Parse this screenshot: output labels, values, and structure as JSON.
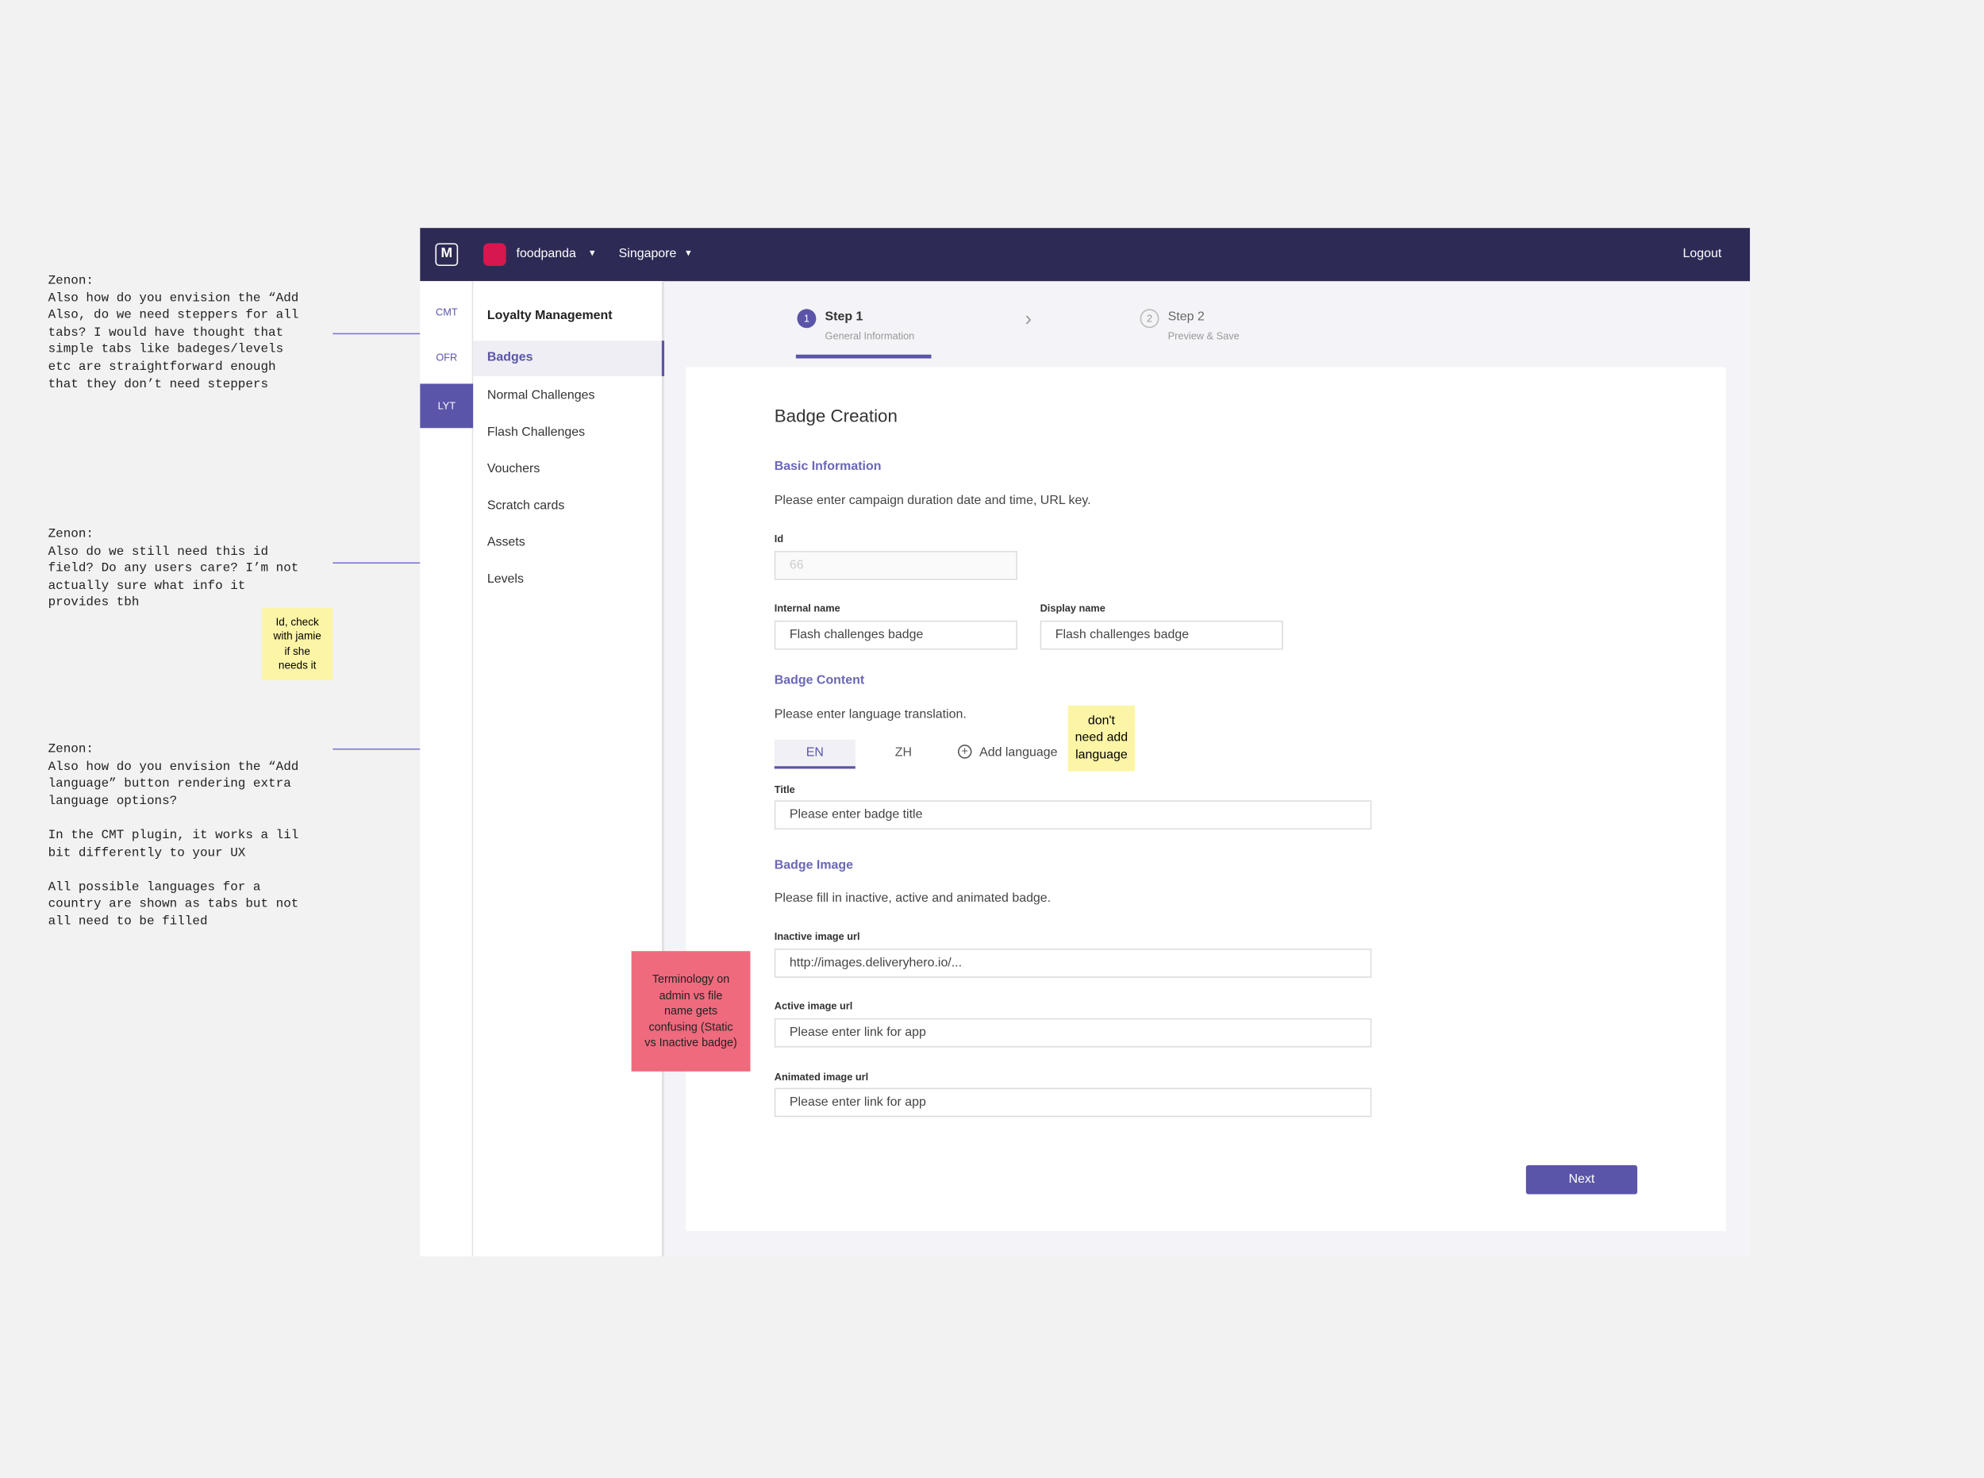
{
  "notes": [
    "Zenon:\nAlso how do you envision the “Add\nAlso, do we need steppers for all\ntabs? I would have thought that\nsimple tabs like badeges/levels\netc are straightforward enough\nthat they don’t need steppers",
    "Zenon:\nAlso do we still need this id\nfield? Do any users care? I’m not\nactually sure what info it\nprovides tbh",
    "Zenon:\nAlso how do you envision the “Add\nlanguage” button rendering extra\nlanguage options?\n\nIn the CMT plugin, it works a lil\nbit differently to your UX\n\nAll possible languages for a\ncountry are shown as tabs but not\nall need to be filled"
  ],
  "stickies": [
    "Id, check\nwith jamie\nif she\nneeds it",
    "don't\nneed add\nlanguage",
    "Terminology on\nadmin vs file\nname gets\nconfusing (Static\nvs Inactive badge)"
  ],
  "header": {
    "logo": "M",
    "brand": "foodpanda",
    "region": "Singapore",
    "logout": "Logout"
  },
  "rail": [
    "CMT",
    "OFR",
    "LYT"
  ],
  "sidebar": {
    "title": "Loyalty Management",
    "items": [
      "Badges",
      "Normal Challenges",
      "Flash Challenges",
      "Vouchers",
      "Scratch cards",
      "Assets",
      "Levels"
    ]
  },
  "stepper": [
    {
      "num": "1",
      "label": "Step 1",
      "sub": "General Information"
    },
    {
      "num": "2",
      "label": "Step 2",
      "sub": "Preview & Save"
    }
  ],
  "form": {
    "title": "Badge Creation",
    "basic": {
      "heading": "Basic Information",
      "desc": "Please enter campaign duration date and time, URL key.",
      "id_label": "Id",
      "id_value": "66",
      "internal_label": "Internal name",
      "internal_value": "Flash challenges badge",
      "display_label": "Display name",
      "display_value": "Flash challenges badge"
    },
    "content": {
      "heading": "Badge Content",
      "desc": "Please enter language translation.",
      "tabs": [
        "EN",
        "ZH"
      ],
      "add": "Add language",
      "title_label": "Title",
      "title_placeholder": "Please enter badge title"
    },
    "image": {
      "heading": "Badge Image",
      "desc": "Please fill in inactive, active and animated badge.",
      "inactive_label": "Inactive image url",
      "inactive_value": "http://images.deliveryhero.io/...",
      "active_label": "Active image url",
      "active_placeholder": "Please enter link for app",
      "animated_label": "Animated image url",
      "animated_placeholder": "Please enter link for app"
    },
    "next": "Next"
  }
}
